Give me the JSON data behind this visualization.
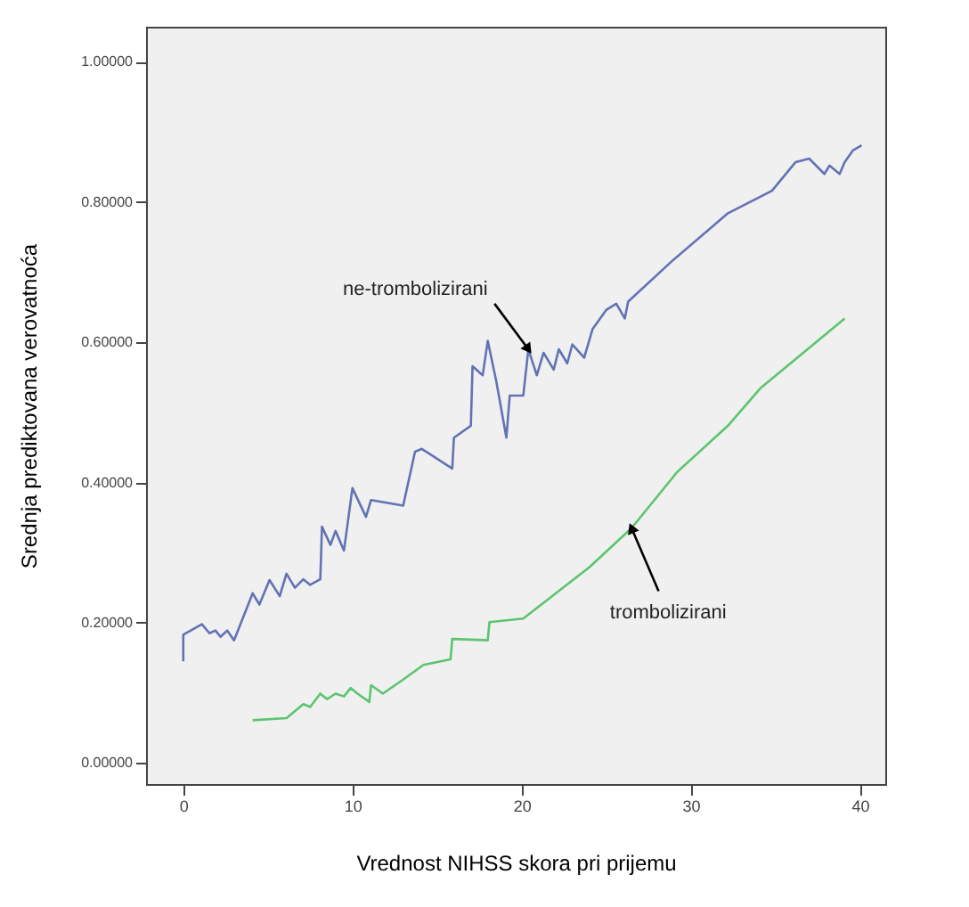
{
  "chart_data": {
    "type": "line",
    "xlabel": "Vrednost NIHSS skora pri prijemu",
    "ylabel": "Srednja prediktovana verovatnoća",
    "xlim": [
      -2.2,
      41.5
    ],
    "ylim": [
      -0.03,
      1.05
    ],
    "xticks": [
      0,
      10,
      20,
      30,
      40
    ],
    "yticks": [
      {
        "value": 0,
        "label": "0.00000"
      },
      {
        "value": 0.2,
        "label": "0.20000"
      },
      {
        "value": 0.4,
        "label": "0.40000"
      },
      {
        "value": 0.6,
        "label": "0.60000"
      },
      {
        "value": 0.8,
        "label": "0.80000"
      },
      {
        "value": 1.0,
        "label": "1.00000"
      }
    ],
    "grid": false,
    "line_style": "solid",
    "marker": "none",
    "series": [
      {
        "color": "#6272b4",
        "x": [
          0,
          0,
          1.1,
          1.55,
          1.9,
          2.2,
          2.6,
          3.0,
          4.1,
          4.5,
          5.1,
          5.7,
          6.1,
          6.6,
          7.1,
          7.5,
          8.1,
          8.2,
          8.7,
          9.0,
          9.5,
          10.0,
          10.8,
          11.1,
          13.0,
          13.7,
          14.1,
          15.9,
          16.0,
          17.0,
          17.1,
          17.7,
          18.0,
          18.5,
          19.1,
          19.3,
          20.1,
          20.4,
          20.9,
          21.3,
          21.9,
          22.2,
          22.7,
          23.0,
          23.7,
          24.2,
          25.0,
          25.6,
          26.1,
          26.3,
          28.9,
          32.2,
          34.8,
          36.2,
          37.0,
          37.9,
          38.2,
          38.8,
          39.1,
          39.6,
          40.1
        ],
        "values": [
          0.145,
          0.183,
          0.198,
          0.185,
          0.189,
          0.18,
          0.189,
          0.175,
          0.242,
          0.226,
          0.261,
          0.238,
          0.27,
          0.25,
          0.262,
          0.254,
          0.262,
          0.337,
          0.311,
          0.331,
          0.303,
          0.392,
          0.351,
          0.375,
          0.367,
          0.444,
          0.448,
          0.42,
          0.464,
          0.481,
          0.566,
          0.553,
          0.602,
          0.545,
          0.464,
          0.524,
          0.524,
          0.59,
          0.553,
          0.585,
          0.561,
          0.59,
          0.57,
          0.597,
          0.578,
          0.619,
          0.646,
          0.655,
          0.634,
          0.658,
          0.716,
          0.784,
          0.816,
          0.857,
          0.862,
          0.84,
          0.852,
          0.84,
          0.857,
          0.874,
          0.881
        ]
      },
      {
        "color": "#5cc46f",
        "x": [
          4.1,
          6.1,
          7.1,
          7.5,
          8.1,
          8.5,
          9.0,
          9.5,
          9.9,
          10.3,
          11.0,
          11.1,
          11.8,
          13.0,
          14.2,
          15.8,
          15.9,
          18.0,
          18.1,
          20.1,
          24.0,
          26.5,
          29.2,
          32.2,
          34.1,
          39.1
        ],
        "values": [
          0.061,
          0.064,
          0.084,
          0.08,
          0.099,
          0.091,
          0.099,
          0.095,
          0.107,
          0.099,
          0.087,
          0.111,
          0.099,
          0.119,
          0.14,
          0.148,
          0.177,
          0.175,
          0.201,
          0.206,
          0.279,
          0.335,
          0.415,
          0.481,
          0.534,
          0.634
        ]
      }
    ],
    "annotations": [
      {
        "text": "ne-trombolizirani",
        "x": 20.4,
        "y": 0.59
      },
      {
        "text": "trombolizirani",
        "x": 26.5,
        "y": 0.335
      }
    ]
  }
}
